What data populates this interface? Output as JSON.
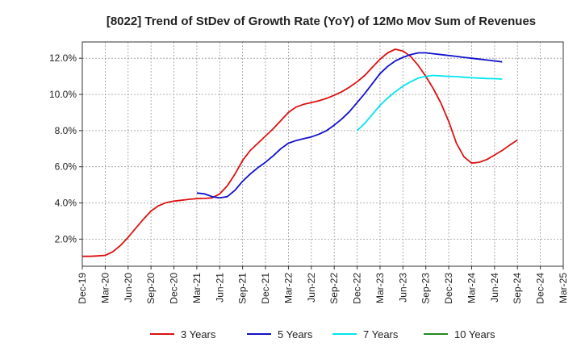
{
  "chart_data": {
    "type": "line",
    "title": "[8022]  Trend of StDev of Growth Rate (YoY) of 12Mo Mov Sum of Revenues",
    "xlabel": "",
    "ylabel": "",
    "x_tick_labels": [
      "Dec-19",
      "Mar-20",
      "Jun-20",
      "Sep-20",
      "Dec-20",
      "Mar-21",
      "Jun-21",
      "Sep-21",
      "Dec-21",
      "Mar-22",
      "Jun-22",
      "Sep-22",
      "Dec-22",
      "Mar-23",
      "Jun-23",
      "Sep-23",
      "Dec-23",
      "Mar-24",
      "Jun-24",
      "Sep-24",
      "Dec-24",
      "Mar-25"
    ],
    "y_tick_labels": [
      "2.0%",
      "4.0%",
      "6.0%",
      "8.0%",
      "10.0%",
      "12.0%"
    ],
    "y_ticks": [
      2,
      4,
      6,
      8,
      10,
      12
    ],
    "ylim": [
      0.5,
      12.9
    ],
    "x_range_months": [
      0,
      63
    ],
    "grid": true,
    "legend_position": "bottom",
    "series": [
      {
        "name": "3 Years",
        "color": "#dd1111",
        "points": [
          [
            0,
            1.05
          ],
          [
            1,
            1.05
          ],
          [
            2,
            1.07
          ],
          [
            3,
            1.1
          ],
          [
            4,
            1.3
          ],
          [
            5,
            1.65
          ],
          [
            6,
            2.1
          ],
          [
            7,
            2.6
          ],
          [
            8,
            3.1
          ],
          [
            9,
            3.55
          ],
          [
            10,
            3.85
          ],
          [
            11,
            4.02
          ],
          [
            12,
            4.1
          ],
          [
            13,
            4.15
          ],
          [
            14,
            4.2
          ],
          [
            15,
            4.24
          ],
          [
            16,
            4.25
          ],
          [
            17,
            4.28
          ],
          [
            18,
            4.5
          ],
          [
            19,
            4.95
          ],
          [
            20,
            5.6
          ],
          [
            21,
            6.35
          ],
          [
            22,
            6.9
          ],
          [
            23,
            7.3
          ],
          [
            24,
            7.7
          ],
          [
            25,
            8.1
          ],
          [
            26,
            8.55
          ],
          [
            27,
            9.0
          ],
          [
            28,
            9.3
          ],
          [
            29,
            9.45
          ],
          [
            30,
            9.55
          ],
          [
            31,
            9.65
          ],
          [
            32,
            9.78
          ],
          [
            33,
            9.95
          ],
          [
            34,
            10.15
          ],
          [
            35,
            10.4
          ],
          [
            36,
            10.7
          ],
          [
            37,
            11.05
          ],
          [
            38,
            11.5
          ],
          [
            39,
            11.95
          ],
          [
            40,
            12.3
          ],
          [
            41,
            12.5
          ],
          [
            42,
            12.4
          ],
          [
            43,
            12.1
          ],
          [
            44,
            11.6
          ],
          [
            45,
            11.0
          ],
          [
            46,
            10.3
          ],
          [
            47,
            9.5
          ],
          [
            48,
            8.5
          ],
          [
            49,
            7.3
          ],
          [
            50,
            6.55
          ],
          [
            51,
            6.2
          ],
          [
            52,
            6.25
          ],
          [
            53,
            6.4
          ],
          [
            54,
            6.65
          ],
          [
            55,
            6.9
          ],
          [
            56,
            7.2
          ],
          [
            57,
            7.48
          ]
        ]
      },
      {
        "name": "5 Years",
        "color": "#1111cc",
        "points": [
          [
            15,
            4.55
          ],
          [
            16,
            4.5
          ],
          [
            17,
            4.35
          ],
          [
            18,
            4.28
          ],
          [
            19,
            4.35
          ],
          [
            20,
            4.7
          ],
          [
            21,
            5.2
          ],
          [
            22,
            5.6
          ],
          [
            23,
            5.95
          ],
          [
            24,
            6.25
          ],
          [
            25,
            6.6
          ],
          [
            26,
            7.0
          ],
          [
            27,
            7.3
          ],
          [
            28,
            7.45
          ],
          [
            29,
            7.55
          ],
          [
            30,
            7.65
          ],
          [
            31,
            7.8
          ],
          [
            32,
            8.0
          ],
          [
            33,
            8.3
          ],
          [
            34,
            8.65
          ],
          [
            35,
            9.05
          ],
          [
            36,
            9.55
          ],
          [
            37,
            10.05
          ],
          [
            38,
            10.6
          ],
          [
            39,
            11.15
          ],
          [
            40,
            11.55
          ],
          [
            41,
            11.85
          ],
          [
            42,
            12.05
          ],
          [
            43,
            12.2
          ],
          [
            44,
            12.3
          ],
          [
            45,
            12.3
          ],
          [
            46,
            12.25
          ],
          [
            47,
            12.2
          ],
          [
            48,
            12.15
          ],
          [
            49,
            12.1
          ],
          [
            50,
            12.05
          ],
          [
            51,
            12.0
          ],
          [
            52,
            11.95
          ],
          [
            53,
            11.9
          ],
          [
            54,
            11.85
          ],
          [
            55,
            11.8
          ]
        ]
      },
      {
        "name": "7 Years",
        "color": "#00e5ee",
        "points": [
          [
            36,
            8.0
          ],
          [
            37,
            8.4
          ],
          [
            38,
            8.9
          ],
          [
            39,
            9.4
          ],
          [
            40,
            9.8
          ],
          [
            41,
            10.15
          ],
          [
            42,
            10.45
          ],
          [
            43,
            10.7
          ],
          [
            44,
            10.9
          ],
          [
            45,
            11.0
          ],
          [
            46,
            11.05
          ],
          [
            47,
            11.02
          ],
          [
            48,
            11.0
          ],
          [
            49,
            10.98
          ],
          [
            50,
            10.95
          ],
          [
            51,
            10.92
          ],
          [
            52,
            10.9
          ],
          [
            53,
            10.88
          ],
          [
            54,
            10.87
          ],
          [
            55,
            10.85
          ]
        ]
      },
      {
        "name": "10 Years",
        "color": "#228822",
        "points": []
      }
    ]
  }
}
